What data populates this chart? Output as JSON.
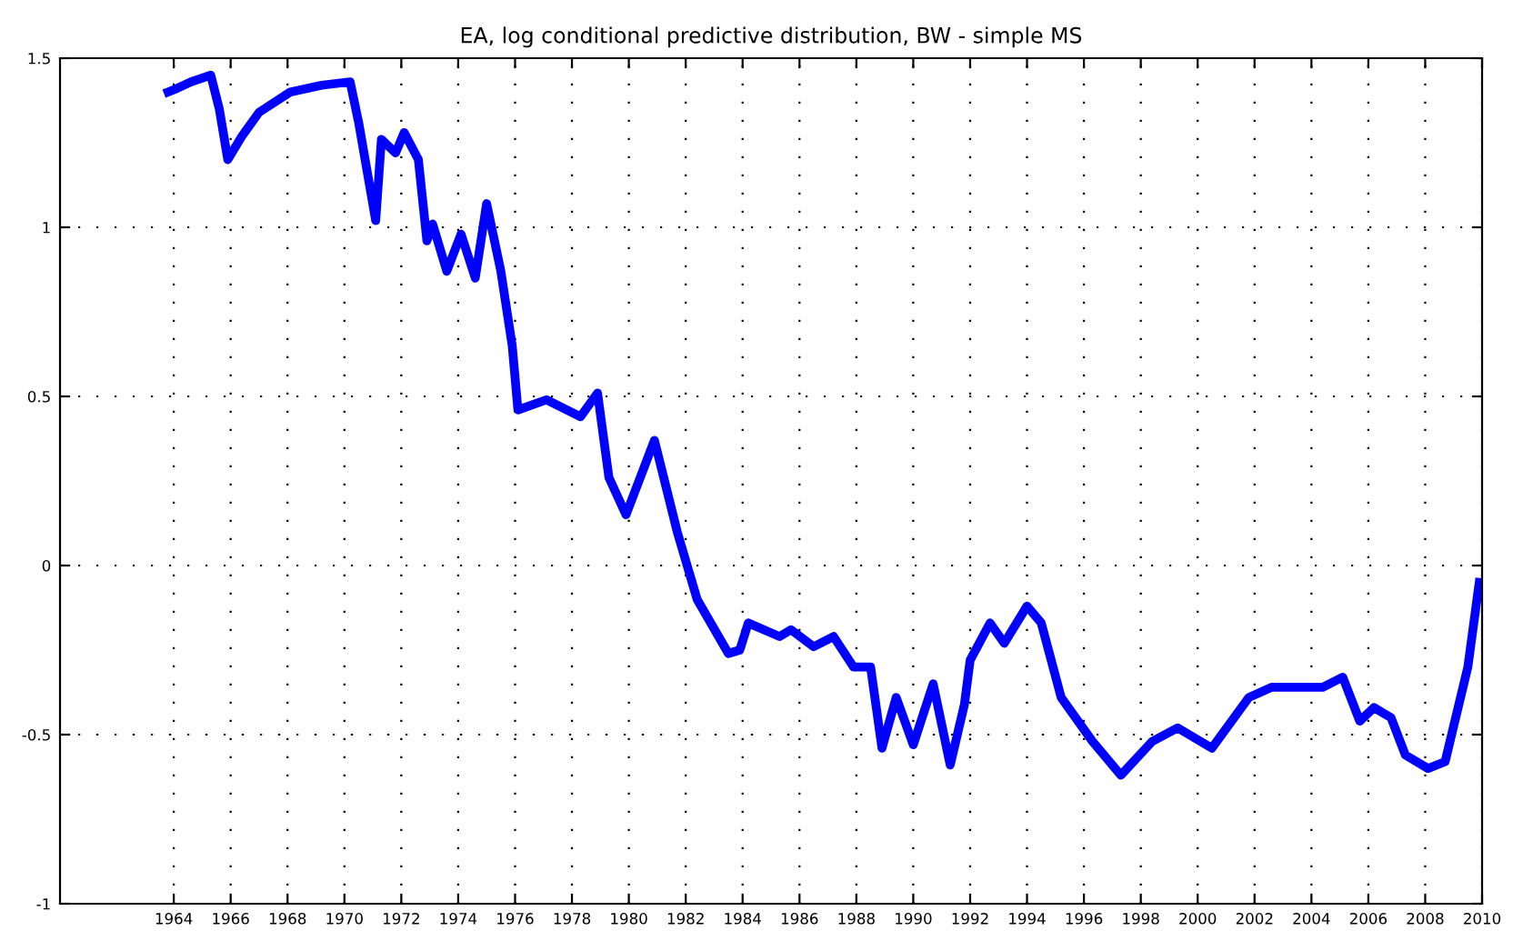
{
  "chart_data": {
    "type": "line",
    "title": "EA, log conditional predictive distribution, BW - simple MS",
    "x": [
      1963.8,
      1964.1,
      1964.6,
      1965.3,
      1965.6,
      1965.9,
      1966.4,
      1967.0,
      1968.1,
      1969.2,
      1970.2,
      1970.5,
      1971.1,
      1971.3,
      1971.8,
      1972.1,
      1972.6,
      1972.9,
      1973.1,
      1973.6,
      1974.1,
      1974.6,
      1975.0,
      1975.5,
      1975.9,
      1976.1,
      1977.1,
      1978.3,
      1978.9,
      1979.3,
      1979.9,
      1980.9,
      1981.7,
      1982.4,
      1983.5,
      1983.9,
      1984.2,
      1985.3,
      1985.7,
      1986.5,
      1987.2,
      1987.9,
      1988.5,
      1988.9,
      1989.4,
      1990.0,
      1990.7,
      1991.3,
      1991.8,
      1992.0,
      1992.7,
      1993.2,
      1994.0,
      1994.5,
      1995.2,
      1996.3,
      1997.3,
      1998.4,
      1999.3,
      2000.5,
      2001.8,
      2002.6,
      2004.4,
      2005.1,
      2005.7,
      2006.2,
      2006.8,
      2007.3,
      2008.1,
      2008.7,
      2009.5,
      2009.9
    ],
    "series": [
      {
        "color": "#0000ff",
        "values": [
          1.4,
          1.41,
          1.43,
          1.45,
          1.35,
          1.2,
          1.27,
          1.34,
          1.4,
          1.42,
          1.43,
          1.31,
          1.02,
          1.26,
          1.22,
          1.28,
          1.2,
          0.96,
          1.01,
          0.87,
          0.98,
          0.85,
          1.07,
          0.87,
          0.65,
          0.46,
          0.49,
          0.44,
          0.51,
          0.26,
          0.15,
          0.37,
          0.1,
          -0.1,
          -0.26,
          -0.25,
          -0.17,
          -0.21,
          -0.19,
          -0.24,
          -0.21,
          -0.3,
          -0.3,
          -0.54,
          -0.39,
          -0.53,
          -0.35,
          -0.59,
          -0.41,
          -0.28,
          -0.17,
          -0.23,
          -0.12,
          -0.17,
          -0.39,
          -0.52,
          -0.62,
          -0.52,
          -0.48,
          -0.54,
          -0.39,
          -0.36,
          -0.36,
          -0.33,
          -0.46,
          -0.42,
          -0.45,
          -0.56,
          -0.6,
          -0.58,
          -0.3,
          -0.05
        ]
      }
    ],
    "xlim": [
      1960,
      2010
    ],
    "xticks": [
      1964,
      1966,
      1968,
      1970,
      1972,
      1974,
      1976,
      1978,
      1980,
      1982,
      1984,
      1986,
      1988,
      1990,
      1992,
      1994,
      1996,
      1998,
      2000,
      2002,
      2004,
      2006,
      2008,
      2010
    ],
    "ylim": [
      -1,
      1.5
    ],
    "yticks": [
      -1,
      -0.5,
      0,
      0.5,
      1,
      1.5
    ],
    "grid": true,
    "line_style": "solid",
    "marker": "none"
  }
}
